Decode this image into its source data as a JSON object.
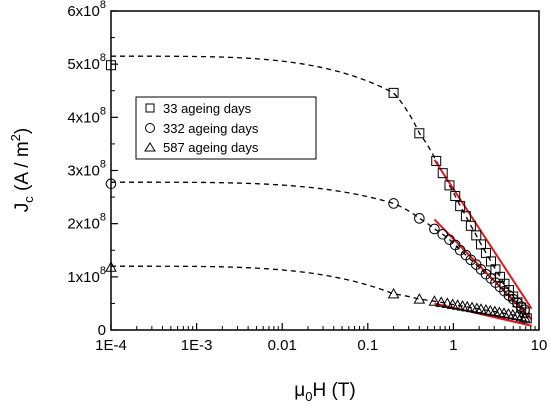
{
  "chart_data": {
    "type": "scatter",
    "title": "",
    "xlabel": {
      "prefix": "μ",
      "sub": "0",
      "rest": "H (T)"
    },
    "ylabel": {
      "prefix": "J",
      "sub": "c",
      "rest": " (A / m",
      "sup": "2",
      "end": ")"
    },
    "x_scale": "log",
    "xlim": [
      0.0001,
      10
    ],
    "ylim": [
      0,
      600000000
    ],
    "x_ticks": [
      {
        "value": 0.0001,
        "label": "1E-4"
      },
      {
        "value": 0.001,
        "label": "1E-3"
      },
      {
        "value": 0.01,
        "label": "0.01"
      },
      {
        "value": 0.1,
        "label": "0.1"
      },
      {
        "value": 1,
        "label": "1"
      },
      {
        "value": 10,
        "label": "10"
      }
    ],
    "y_ticks": [
      {
        "value": 0,
        "base": "0",
        "exp": ""
      },
      {
        "value": 100000000,
        "base": "1x10",
        "exp": "8"
      },
      {
        "value": 200000000,
        "base": "2x10",
        "exp": "8"
      },
      {
        "value": 300000000,
        "base": "3x10",
        "exp": "8"
      },
      {
        "value": 400000000,
        "base": "4x10",
        "exp": "8"
      },
      {
        "value": 500000000,
        "base": "5x10",
        "exp": "8"
      },
      {
        "value": 600000000,
        "base": "6x10",
        "exp": "8"
      }
    ],
    "legend_position": "upper-middle",
    "grid": false,
    "series": [
      {
        "name": "33 ageing days",
        "marker": "square",
        "jc0": 515000000,
        "x": [
          0.0001,
          0.2,
          0.4,
          0.63,
          0.75,
          0.9,
          1.05,
          1.2,
          1.4,
          1.6,
          1.85,
          2.1,
          2.4,
          2.75,
          3.1,
          3.5,
          3.95,
          4.45,
          5.0,
          5.6,
          6.2,
          6.8,
          7.2
        ],
        "y": [
          498000000,
          446000000,
          370000000,
          318000000,
          295000000,
          272000000,
          252000000,
          233000000,
          214000000,
          196000000,
          178000000,
          161000000,
          145000000,
          129000000,
          114000000,
          100000000,
          87000000,
          75000000,
          63000000,
          52000000,
          42000000,
          33000000,
          22000000
        ]
      },
      {
        "name": "332 ageing days",
        "marker": "circle",
        "jc0": 278000000,
        "x": [
          0.0001,
          0.2,
          0.4,
          0.6,
          0.75,
          0.9,
          1.05,
          1.2,
          1.4,
          1.6,
          1.85,
          2.1,
          2.4,
          2.75,
          3.1,
          3.5,
          3.95,
          4.45,
          5.0,
          5.6,
          6.2,
          6.8
        ],
        "y": [
          275000000,
          238000000,
          210000000,
          190000000,
          180000000,
          170000000,
          160000000,
          150000000,
          141000000,
          132000000,
          123000000,
          114000000,
          105000000,
          97000000,
          89000000,
          81000000,
          73000000,
          65000000,
          58000000,
          51000000,
          44000000,
          38000000
        ]
      },
      {
        "name": "587 ageing days",
        "marker": "triangle",
        "jc0": 120000000,
        "x": [
          0.0001,
          0.2,
          0.4,
          0.6,
          0.72,
          0.85,
          0.98,
          1.12,
          1.28,
          1.45,
          1.65,
          1.88,
          2.1,
          2.4,
          2.7,
          3.05,
          3.45,
          3.9,
          4.4,
          4.95,
          5.55,
          6.2,
          6.8
        ],
        "y": [
          118000000,
          68000000,
          58000000,
          54000000,
          52000000,
          50000000,
          48000000,
          46500000,
          45000000,
          43500000,
          42000000,
          40500000,
          39000000,
          37500000,
          36000000,
          34500000,
          33000000,
          31500000,
          30000000,
          28500000,
          27000000,
          25000000,
          23000000
        ]
      }
    ],
    "fit_lines": [
      {
        "series": "33 ageing days",
        "x": [
          0.6,
          8.2
        ],
        "y": [
          320000000,
          40000000
        ]
      },
      {
        "series": "332 ageing days",
        "x": [
          0.6,
          8.2
        ],
        "y": [
          208000000,
          20000000
        ]
      },
      {
        "series": "587 ageing days",
        "x": [
          0.6,
          8.2
        ],
        "y": [
          50000000,
          8000000
        ]
      }
    ],
    "colors": {
      "axis": "#000000",
      "markers": "#000000",
      "guide": "#000000",
      "fit": "#e8141b"
    }
  }
}
